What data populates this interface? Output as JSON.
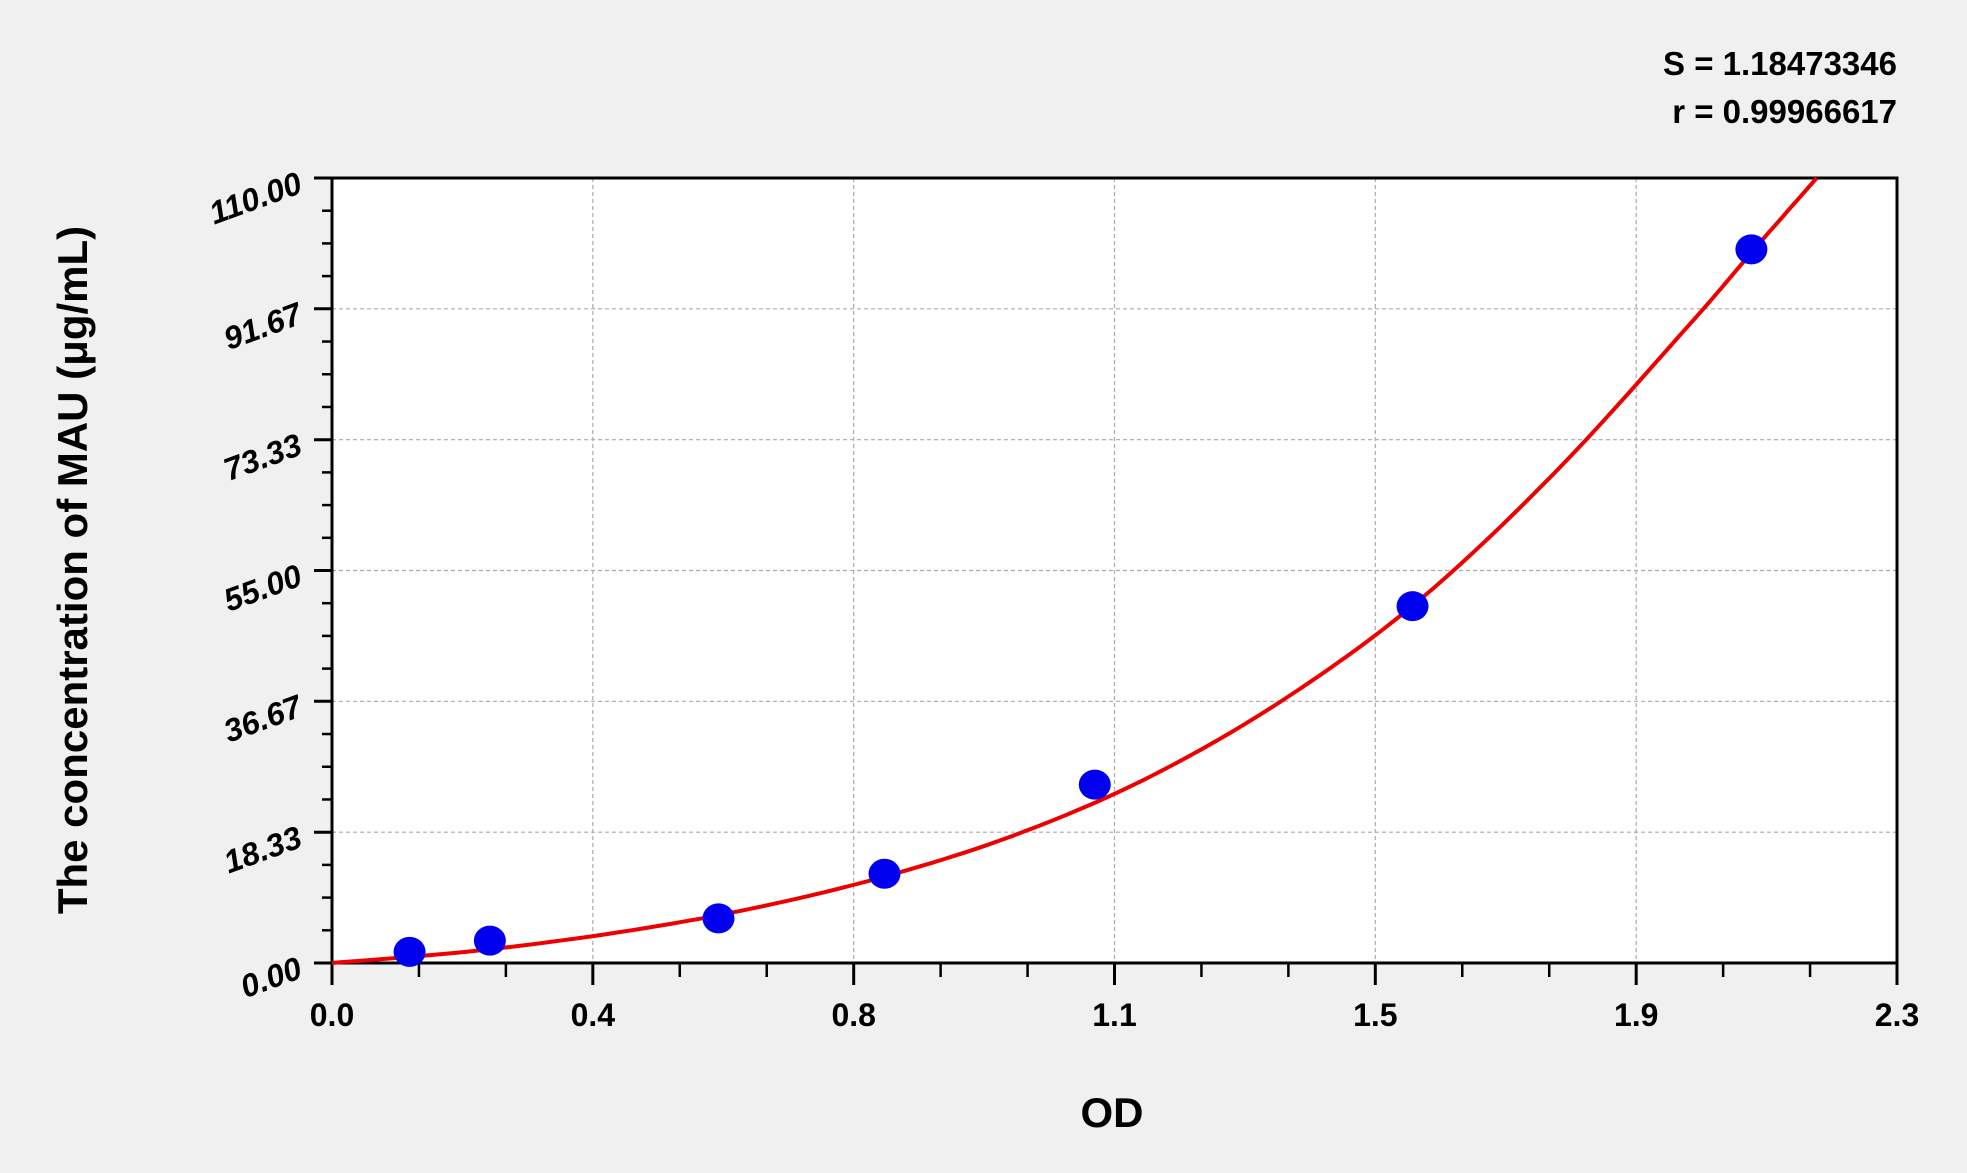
{
  "chart_data": {
    "type": "scatter",
    "title": "",
    "xlabel": "OD",
    "ylabel": "The concentration of MAU (μg/mL)",
    "xlim": [
      0,
      2.3
    ],
    "ylim": [
      0,
      110
    ],
    "xticks": [
      0,
      0.3833,
      0.7667,
      1.15,
      1.5333,
      1.9167,
      2.3
    ],
    "xtick_labels": [
      "0.0",
      "0.4",
      "0.8",
      "1.1",
      "1.5",
      "1.9",
      "2.3"
    ],
    "yticks": [
      0,
      18.33,
      36.67,
      55,
      73.33,
      91.67,
      110
    ],
    "ytick_labels": [
      "0.00",
      "18.33",
      "36.67",
      "55.00",
      "73.33",
      "91.67",
      "110.00"
    ],
    "grid": true,
    "annotations": [
      "S = 1.18473346",
      "r = 0.99966617"
    ],
    "points": {
      "x": [
        0.114,
        0.232,
        0.568,
        0.812,
        1.121,
        1.588,
        2.086
      ],
      "y": [
        1.56,
        3.13,
        6.25,
        12.5,
        25,
        50,
        100
      ],
      "color": "#0000ee"
    },
    "fit_curve": {
      "x": [
        0,
        0.2,
        0.4,
        0.6,
        0.8,
        1.0,
        1.2,
        1.4,
        1.6,
        1.8,
        2.0,
        2.09,
        2.182
      ],
      "y": [
        0,
        1.6,
        4.0,
        7.3,
        11.8,
        17.8,
        26,
        37,
        51,
        69,
        90,
        100,
        110
      ],
      "color": "#ee0000"
    }
  }
}
